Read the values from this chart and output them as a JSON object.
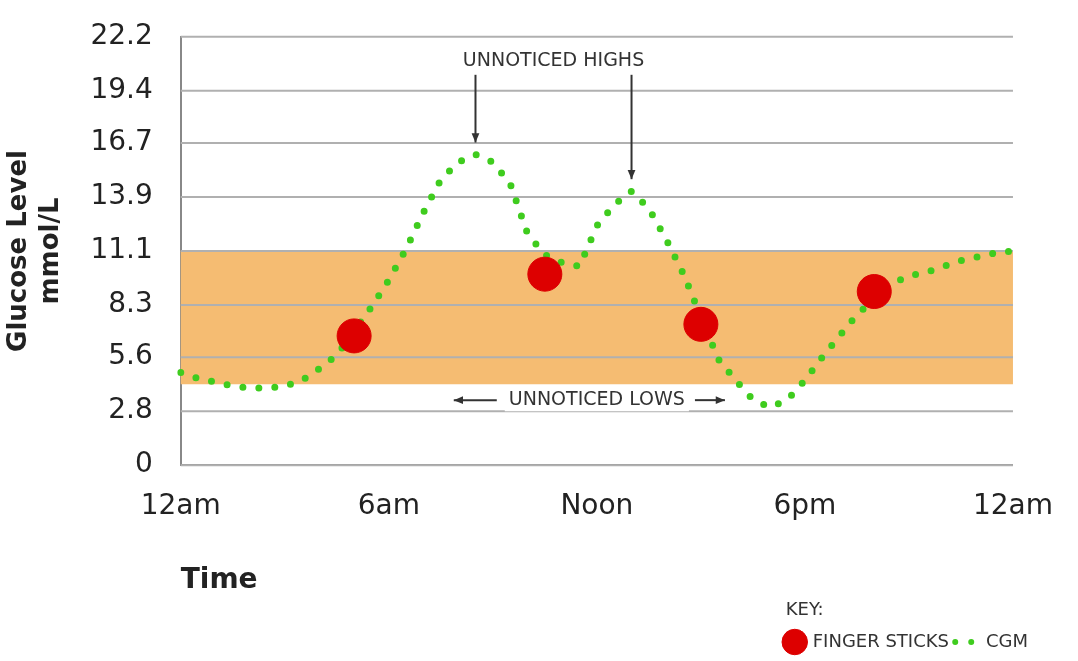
{
  "chart_data": {
    "type": "line",
    "ylabel": "Glucose Level mmol/L",
    "xlabel": "Time",
    "legend_title": "KEY:",
    "legend": "bottom right",
    "grid": "y",
    "marker": "none",
    "line_style": "dotted",
    "categories": [
      "12am",
      null,
      null,
      null,
      null,
      null,
      null,
      null,
      null,
      null,
      null,
      null,
      "6am",
      null,
      null,
      null,
      null,
      null,
      null,
      null,
      null,
      null,
      null,
      null,
      "Noon",
      null,
      null,
      null,
      null,
      null,
      null,
      null,
      null,
      null,
      null,
      null,
      "6pm",
      null,
      null,
      null,
      null,
      null,
      null,
      null,
      null,
      null,
      null,
      null,
      "12am"
    ],
    "ylim": [
      0,
      22.2
    ],
    "yticks": [
      0,
      2.8,
      5.6,
      8.3,
      11.1,
      13.9,
      16.7,
      19.4,
      22.2
    ],
    "bands": [
      {
        "axis": "y",
        "from": 4.2,
        "to": 11.1,
        "color": "#f5bc72"
      }
    ],
    "annotations": [
      "UNNOTICED HIGHS",
      "UNNOTICED LOWS"
    ],
    "series": [
      {
        "name": "FINGER STICKS",
        "type": "scatter",
        "marker": "circle",
        "color": "#dd0000",
        "values": [
          null,
          null,
          null,
          null,
          null,
          null,
          null,
          null,
          null,
          null,
          6.7,
          null,
          null,
          null,
          null,
          null,
          null,
          null,
          null,
          null,
          null,
          9.9,
          null,
          null,
          null,
          null,
          null,
          null,
          null,
          null,
          7.3,
          null,
          null,
          null,
          null,
          null,
          null,
          null,
          null,
          null,
          9.0,
          null,
          null,
          null,
          null,
          null,
          null,
          null,
          null
        ]
      },
      {
        "name": "CGM",
        "color": "#3fcc1e",
        "values": [
          4.8,
          4.5,
          4.3,
          4.1,
          4.0,
          4.0,
          4.1,
          4.4,
          5.0,
          5.7,
          null,
          8.2,
          9.6,
          11.2,
          13.1,
          14.8,
          15.7,
          16.1,
          15.7,
          14.6,
          12.0,
          10.9,
          10.5,
          10.3,
          12.4,
          13.5,
          14.2,
          13.3,
          11.7,
          9.9,
          null,
          5.5,
          4.4,
          3.4,
          3.0,
          3.4,
          4.4,
          5.6,
          6.7,
          7.8,
          null,
          9.4,
          9.8,
          10.0,
          10.3,
          10.6,
          10.8,
          11.0,
          11.1
        ]
      }
    ]
  }
}
